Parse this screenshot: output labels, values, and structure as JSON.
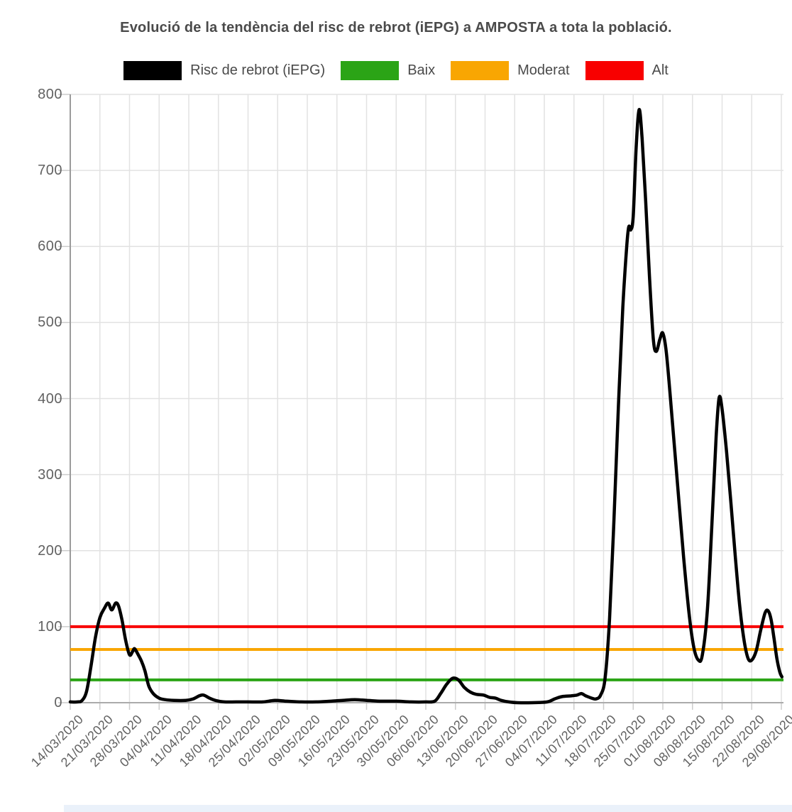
{
  "title": "Evolució de la tendència del risc de rebrot (iEPG) a AMPOSTA a tota la població.",
  "legend": [
    {
      "label": "Risc de rebrot (iEPG)",
      "color": "#000000"
    },
    {
      "label": "Baix",
      "color": "#2ba416"
    },
    {
      "label": "Moderat",
      "color": "#f9a602"
    },
    {
      "label": "Alt",
      "color": "#f80000"
    }
  ],
  "chart_data": {
    "type": "line",
    "title": "Evolució de la tendència del risc de rebrot (iEPG) a AMPOSTA a tota la població.",
    "xlabel": "",
    "ylabel": "",
    "ylim": [
      0,
      800
    ],
    "y_ticks": [
      0,
      100,
      200,
      300,
      400,
      500,
      600,
      700,
      800
    ],
    "x_tick_labels": [
      "14/03/2020",
      "21/03/2020",
      "28/03/2020",
      "04/04/2020",
      "11/04/2020",
      "18/04/2020",
      "25/04/2020",
      "02/05/2020",
      "09/05/2020",
      "16/05/2020",
      "23/05/2020",
      "30/05/2020",
      "06/06/2020",
      "13/06/2020",
      "20/06/2020",
      "27/06/2020",
      "04/07/2020",
      "11/07/2020",
      "18/07/2020",
      "25/07/2020",
      "01/08/2020",
      "08/08/2020",
      "15/08/2020",
      "22/08/2020",
      "29/08/2020"
    ],
    "grid": true,
    "legend_position": "top",
    "thresholds": [
      {
        "name": "Baix",
        "value": 30,
        "color": "#2ba416"
      },
      {
        "name": "Moderat",
        "value": 70,
        "color": "#f9a602"
      },
      {
        "name": "Alt",
        "value": 100,
        "color": "#f80000"
      }
    ],
    "series": [
      {
        "name": "Risc de rebrot (iEPG)",
        "color": "#000000",
        "x_unit": "week_index (0 = 14/03/2020, 24 = 29/08/2020)",
        "points": [
          [
            0,
            1
          ],
          [
            0.25,
            1
          ],
          [
            0.4,
            3
          ],
          [
            0.55,
            15
          ],
          [
            0.7,
            48
          ],
          [
            0.85,
            86
          ],
          [
            1,
            112
          ],
          [
            1.15,
            124
          ],
          [
            1.28,
            131
          ],
          [
            1.4,
            122
          ],
          [
            1.53,
            131
          ],
          [
            1.63,
            127
          ],
          [
            1.75,
            108
          ],
          [
            1.87,
            82
          ],
          [
            2,
            63
          ],
          [
            2.1,
            67
          ],
          [
            2.17,
            71
          ],
          [
            2.28,
            64
          ],
          [
            2.4,
            55
          ],
          [
            2.52,
            42
          ],
          [
            2.65,
            22
          ],
          [
            2.8,
            12
          ],
          [
            3,
            6
          ],
          [
            3.2,
            4
          ],
          [
            3.5,
            3
          ],
          [
            3.9,
            3
          ],
          [
            4.15,
            5
          ],
          [
            4.35,
            9
          ],
          [
            4.5,
            10
          ],
          [
            4.7,
            6
          ],
          [
            4.9,
            3
          ],
          [
            5.2,
            1
          ],
          [
            5.6,
            1
          ],
          [
            6,
            1
          ],
          [
            6.5,
            1
          ],
          [
            6.9,
            3
          ],
          [
            7.3,
            2
          ],
          [
            7.8,
            1
          ],
          [
            8.3,
            1
          ],
          [
            8.8,
            2
          ],
          [
            9.2,
            3
          ],
          [
            9.6,
            4
          ],
          [
            10,
            3
          ],
          [
            10.5,
            2
          ],
          [
            11,
            2
          ],
          [
            11.5,
            1
          ],
          [
            12,
            1
          ],
          [
            12.3,
            2
          ],
          [
            12.5,
            12
          ],
          [
            12.7,
            24
          ],
          [
            12.9,
            32
          ],
          [
            13.1,
            30
          ],
          [
            13.3,
            20
          ],
          [
            13.5,
            14
          ],
          [
            13.7,
            11
          ],
          [
            13.95,
            10
          ],
          [
            14.15,
            7
          ],
          [
            14.35,
            6
          ],
          [
            14.55,
            3
          ],
          [
            14.8,
            1
          ],
          [
            15.1,
            0
          ],
          [
            15.6,
            0
          ],
          [
            16.1,
            1
          ],
          [
            16.35,
            5
          ],
          [
            16.6,
            8
          ],
          [
            16.9,
            9
          ],
          [
            17.1,
            10
          ],
          [
            17.25,
            12
          ],
          [
            17.4,
            9
          ],
          [
            17.6,
            6
          ],
          [
            17.75,
            5
          ],
          [
            17.9,
            10
          ],
          [
            18.05,
            32
          ],
          [
            18.2,
            110
          ],
          [
            18.35,
            240
          ],
          [
            18.5,
            390
          ],
          [
            18.65,
            520
          ],
          [
            18.78,
            600
          ],
          [
            18.85,
            626
          ],
          [
            18.92,
            622
          ],
          [
            19,
            640
          ],
          [
            19.1,
            730
          ],
          [
            19.2,
            780
          ],
          [
            19.3,
            742
          ],
          [
            19.42,
            660
          ],
          [
            19.55,
            560
          ],
          [
            19.68,
            478
          ],
          [
            19.78,
            462
          ],
          [
            19.9,
            478
          ],
          [
            20,
            486
          ],
          [
            20.12,
            460
          ],
          [
            20.3,
            380
          ],
          [
            20.5,
            285
          ],
          [
            20.7,
            192
          ],
          [
            20.9,
            112
          ],
          [
            21.05,
            72
          ],
          [
            21.2,
            56
          ],
          [
            21.33,
            62
          ],
          [
            21.5,
            120
          ],
          [
            21.65,
            230
          ],
          [
            21.8,
            350
          ],
          [
            21.9,
            401
          ],
          [
            22,
            386
          ],
          [
            22.15,
            330
          ],
          [
            22.3,
            262
          ],
          [
            22.45,
            190
          ],
          [
            22.6,
            125
          ],
          [
            22.75,
            80
          ],
          [
            22.88,
            58
          ],
          [
            23,
            56
          ],
          [
            23.15,
            68
          ],
          [
            23.3,
            95
          ],
          [
            23.45,
            118
          ],
          [
            23.55,
            121
          ],
          [
            23.65,
            110
          ],
          [
            23.75,
            85
          ],
          [
            23.85,
            58
          ],
          [
            23.95,
            40
          ],
          [
            24.02,
            34
          ]
        ]
      }
    ]
  },
  "colors": {
    "grid": "#e2e2e2",
    "axis": "#9b9b9b",
    "zero_line": "#ababab",
    "tick_mark": "#cccccc",
    "title_text": "#4a4a4a",
    "tick_text": "#616161"
  }
}
